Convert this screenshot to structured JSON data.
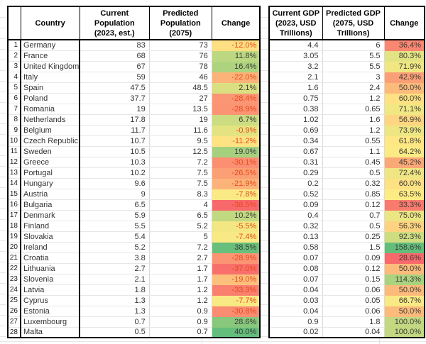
{
  "headers": {
    "corner": "",
    "country": "Country",
    "pop_current": "Current Population\n(2023, est.)",
    "pop_predicted": "Predicted\nPopulation (2075)",
    "pop_change": "Change",
    "gdp_current": "Current GDP\n(2023, USD\nTrillions)",
    "gdp_predicted": "Predicted GDP\n(2075, USD\nTrillions)",
    "gdp_change": "Change"
  },
  "colors": {
    "negative_text": "#E8491D",
    "positive_text": "#3B3B3B",
    "scale_min": "#F8696B",
    "scale_mid": "#FFEB84",
    "scale_max": "#63BE7B",
    "border": "#000000",
    "gridline": "#E7E7E7"
  },
  "rows": [
    {
      "num": "1",
      "country": "Germany",
      "pop_current": "83",
      "pop_predicted": "73",
      "pop_change": "-12.0%",
      "pop_change_bg": "#FEE082",
      "gdp_current": "4.4",
      "gdp_predicted": "6",
      "gdp_change": "36.4%",
      "gdp_change_bg": "#FA8771"
    },
    {
      "num": "2",
      "country": "France",
      "pop_current": "68",
      "pop_predicted": "76",
      "pop_change": "11.8%",
      "pop_change_bg": "#BCD880",
      "gdp_current": "3.05",
      "gdp_predicted": "5.5",
      "gdp_change": "80.3%",
      "gdp_change_bg": "#E2E382"
    },
    {
      "num": "3",
      "country": "United Kingdom",
      "pop_current": "67",
      "pop_predicted": "78",
      "pop_change": "16.4%",
      "pop_change_bg": "#ADD37F",
      "gdp_current": "3.2",
      "gdp_predicted": "5.5",
      "gdp_change": "71.9%",
      "gdp_change_bg": "#F0E783"
    },
    {
      "num": "4",
      "country": "Italy",
      "pop_current": "59",
      "pop_predicted": "46",
      "pop_change": "-22.0%",
      "pop_change_bg": "#FCB379",
      "gdp_current": "2.1",
      "gdp_predicted": "3",
      "gdp_change": "42.9%",
      "gdp_change_bg": "#FBA076"
    },
    {
      "num": "5",
      "country": "Spain",
      "pop_current": "47.5",
      "pop_predicted": "48.5",
      "pop_change": "2.1%",
      "pop_change_bg": "#DAE082",
      "gdp_current": "1.6",
      "gdp_predicted": "2.4",
      "gdp_change": "50.0%",
      "gdp_change_bg": "#FCBB7B"
    },
    {
      "num": "6",
      "country": "Poland",
      "pop_current": "37.7",
      "pop_predicted": "27",
      "pop_change": "-28.4%",
      "pop_change_bg": "#FA9674",
      "gdp_current": "0.75",
      "gdp_predicted": "1.2",
      "gdp_change": "60.0%",
      "gdp_change_bg": "#FEE182"
    },
    {
      "num": "7",
      "country": "Romania",
      "pop_current": "19",
      "pop_predicted": "13.5",
      "pop_change": "-28.9%",
      "pop_change_bg": "#FA9473",
      "gdp_current": "0.38",
      "gdp_predicted": "0.65",
      "gdp_change": "71.1%",
      "gdp_change_bg": "#F1E783"
    },
    {
      "num": "8",
      "country": "Netherlands",
      "pop_current": "17.8",
      "pop_predicted": "19",
      "pop_change": "6.7%",
      "pop_change_bg": "#CCDC81",
      "gdp_current": "1.02",
      "gdp_predicted": "1.6",
      "gdp_change": "56.9%",
      "gdp_change_bg": "#FED580"
    },
    {
      "num": "9",
      "country": "Belgium",
      "pop_current": "11.7",
      "pop_predicted": "11.6",
      "pop_change": "-0.9%",
      "pop_change_bg": "#E4E382",
      "gdp_current": "0.69",
      "gdp_predicted": "1.2",
      "gdp_change": "73.9%",
      "gdp_change_bg": "#EDE683"
    },
    {
      "num": "10",
      "country": "Czech Republic",
      "pop_current": "10.7",
      "pop_predicted": "9.5",
      "pop_change": "-11.2%",
      "pop_change_bg": "#FFE383",
      "gdp_current": "0.34",
      "gdp_predicted": "0.55",
      "gdp_change": "61.8%",
      "gdp_change_bg": "#FFE883"
    },
    {
      "num": "11",
      "country": "Sweden",
      "pop_current": "10.5",
      "pop_predicted": "12.5",
      "pop_change": "19.0%",
      "pop_change_bg": "#A5D17F",
      "gdp_current": "0.67",
      "gdp_predicted": "1.1",
      "gdp_change": "64.2%",
      "gdp_change_bg": "#FCEA84"
    },
    {
      "num": "12",
      "country": "Greece",
      "pop_current": "10.3",
      "pop_predicted": "7.2",
      "pop_change": "-30.1%",
      "pop_change_bg": "#FA8F72",
      "gdp_current": "0.31",
      "gdp_predicted": "0.45",
      "gdp_change": "45.2%",
      "gdp_change_bg": "#FBA877"
    },
    {
      "num": "13",
      "country": "Portugal",
      "pop_current": "10.2",
      "pop_predicted": "7.5",
      "pop_change": "-26.5%",
      "pop_change_bg": "#FB9F75",
      "gdp_current": "0.29",
      "gdp_predicted": "0.5",
      "gdp_change": "72.4%",
      "gdp_change_bg": "#EFE683"
    },
    {
      "num": "14",
      "country": "Hungary",
      "pop_current": "9.6",
      "pop_predicted": "7.5",
      "pop_change": "-21.9%",
      "pop_change_bg": "#FCB379",
      "gdp_current": "0.2",
      "gdp_predicted": "0.32",
      "gdp_change": "60.0%",
      "gdp_change_bg": "#FEE182"
    },
    {
      "num": "15",
      "country": "Austria",
      "pop_current": "9",
      "pop_predicted": "8.3",
      "pop_change": "-7.8%",
      "pop_change_bg": "#FAE984",
      "gdp_current": "0.52",
      "gdp_predicted": "0.85",
      "gdp_change": "63.5%",
      "gdp_change_bg": "#FEEB84"
    },
    {
      "num": "16",
      "country": "Bulgaria",
      "pop_current": "6.5",
      "pop_predicted": "4",
      "pop_change": "-38.5%",
      "pop_change_bg": "#F8696B",
      "gdp_current": "0.09",
      "gdp_predicted": "0.12",
      "gdp_change": "33.3%",
      "gdp_change_bg": "#F97B6E"
    },
    {
      "num": "17",
      "country": "Denmark",
      "pop_current": "5.9",
      "pop_predicted": "6.5",
      "pop_change": "10.2%",
      "pop_change_bg": "#C1D980",
      "gdp_current": "0.4",
      "gdp_predicted": "0.7",
      "gdp_change": "75.0%",
      "gdp_change_bg": "#EBE583"
    },
    {
      "num": "18",
      "country": "Finland",
      "pop_current": "5.5",
      "pop_predicted": "5.2",
      "pop_change": "-5.5%",
      "pop_change_bg": "#F2E783",
      "gdp_current": "0.32",
      "gdp_predicted": "0.5",
      "gdp_change": "56.3%",
      "gdp_change_bg": "#FED37F"
    },
    {
      "num": "19",
      "country": "Slovakia",
      "pop_current": "5.4",
      "pop_predicted": "5",
      "pop_change": "-7.4%",
      "pop_change_bg": "#F8E984",
      "gdp_current": "0.13",
      "gdp_predicted": "0.25",
      "gdp_change": "92.3%",
      "gdp_change_bg": "#CFDD81"
    },
    {
      "num": "20",
      "country": "Ireland",
      "pop_current": "5.2",
      "pop_predicted": "7.2",
      "pop_change": "38.5%",
      "pop_change_bg": "#68BF7B",
      "gdp_current": "0.58",
      "gdp_predicted": "1.5",
      "gdp_change": "158.6%",
      "gdp_change_bg": "#63BE7B"
    },
    {
      "num": "21",
      "country": "Croatia",
      "pop_current": "3.8",
      "pop_predicted": "2.7",
      "pop_change": "-28.9%",
      "pop_change_bg": "#FA9473",
      "gdp_current": "0.07",
      "gdp_predicted": "0.09",
      "gdp_change": "28.6%",
      "gdp_change_bg": "#F8696B"
    },
    {
      "num": "22",
      "country": "Lithuania",
      "pop_current": "2.7",
      "pop_predicted": "1.7",
      "pop_change": "-37.0%",
      "pop_change_bg": "#F8706C",
      "gdp_current": "0.08",
      "gdp_predicted": "0.12",
      "gdp_change": "50.0%",
      "gdp_change_bg": "#FCBB7B"
    },
    {
      "num": "23",
      "country": "Slovenia",
      "pop_current": "2.1",
      "pop_predicted": "1.7",
      "pop_change": "-19.0%",
      "pop_change_bg": "#FDC07C",
      "gdp_current": "0.07",
      "gdp_predicted": "0.15",
      "gdp_change": "114.3%",
      "gdp_change_bg": "#ABD37F"
    },
    {
      "num": "24",
      "country": "Latvia",
      "pop_current": "1.8",
      "pop_predicted": "1.2",
      "pop_change": "-33.3%",
      "pop_change_bg": "#F9806F",
      "gdp_current": "0.04",
      "gdp_predicted": "0.06",
      "gdp_change": "50.0%",
      "gdp_change_bg": "#FCBB7B"
    },
    {
      "num": "25",
      "country": "Cyprus",
      "pop_current": "1.3",
      "pop_predicted": "1.2",
      "pop_change": "-7.7%",
      "pop_change_bg": "#F9E984",
      "gdp_current": "0.03",
      "gdp_predicted": "0.05",
      "gdp_change": "66.7%",
      "gdp_change_bg": "#F8E984"
    },
    {
      "num": "26",
      "country": "Estonia",
      "pop_current": "1.3",
      "pop_predicted": "0.9",
      "pop_change": "-30.8%",
      "pop_change_bg": "#FA8C72",
      "gdp_current": "0.04",
      "gdp_predicted": "0.06",
      "gdp_change": "50.0%",
      "gdp_change_bg": "#FCBB7B"
    },
    {
      "num": "27",
      "country": "Luxembourg",
      "pop_current": "0.7",
      "pop_predicted": "0.9",
      "pop_change": "28.6%",
      "pop_change_bg": "#87C87D",
      "gdp_current": "0.9",
      "gdp_predicted": "1.8",
      "gdp_change": "100.0%",
      "gdp_change_bg": "#C2D981"
    },
    {
      "num": "28",
      "country": "Malta",
      "pop_current": "0.5",
      "pop_predicted": "0.7",
      "pop_change": "40.0%",
      "pop_change_bg": "#63BE7B",
      "gdp_current": "0.02",
      "gdp_predicted": "0.04",
      "gdp_change": "100.0%",
      "gdp_change_bg": "#C2D981"
    }
  ]
}
